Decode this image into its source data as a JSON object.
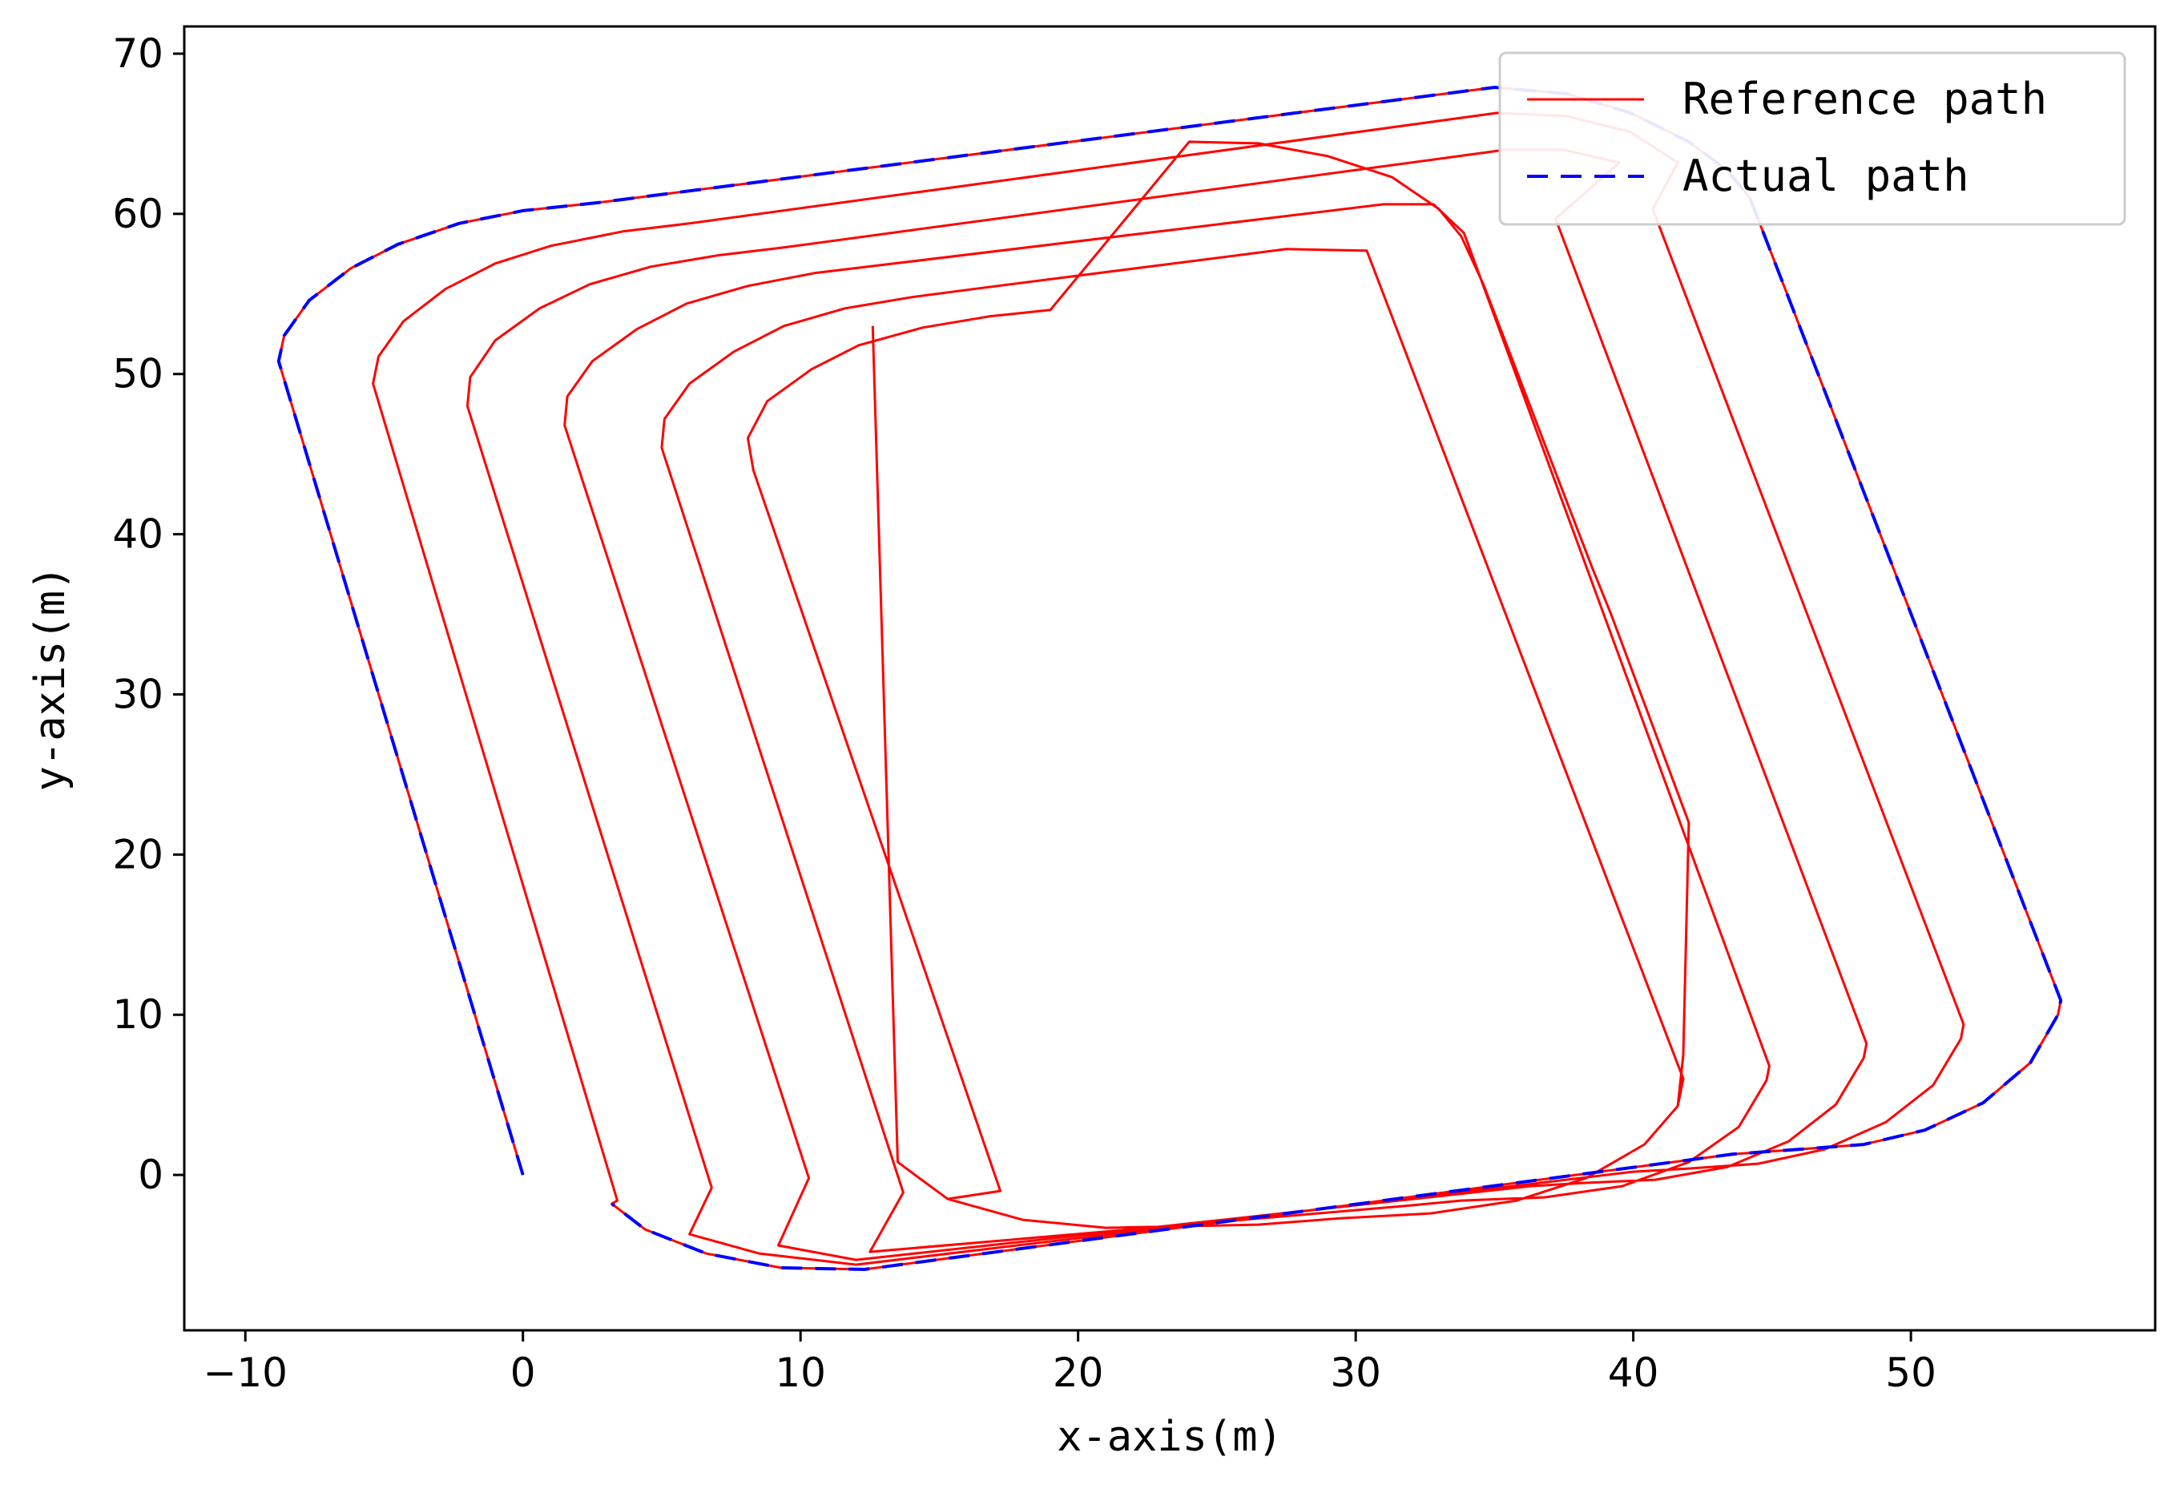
{
  "chart_data": {
    "type": "line",
    "title": "",
    "xlabel": "x-axis(m)",
    "ylabel": "y-axis(m)",
    "xlim": [
      -12.2,
      58.8
    ],
    "ylim": [
      -9.7,
      71.7
    ],
    "xticks": [
      -10,
      0,
      10,
      20,
      30,
      40,
      50
    ],
    "yticks": [
      0,
      10,
      20,
      30,
      40,
      50,
      60,
      70
    ],
    "grid": false,
    "legend": {
      "position": "top-right"
    },
    "series": [
      {
        "name": "Reference path",
        "color": "#ff0000",
        "style": "solid",
        "points": [
          [
            0.0,
            0.0
          ],
          [
            -8.8,
            50.8
          ],
          [
            -8.6,
            52.4
          ],
          [
            -7.7,
            54.6
          ],
          [
            -6.2,
            56.6
          ],
          [
            -4.5,
            58.1
          ],
          [
            -2.3,
            59.4
          ],
          [
            0.0,
            60.2
          ],
          [
            2.7,
            60.7
          ],
          [
            35.0,
            67.9
          ],
          [
            37.6,
            67.5
          ],
          [
            39.9,
            66.3
          ],
          [
            42.0,
            64.5
          ],
          [
            43.4,
            62.7
          ],
          [
            44.2,
            61.0
          ],
          [
            55.4,
            10.9
          ],
          [
            55.3,
            10.0
          ],
          [
            54.3,
            7.0
          ],
          [
            52.6,
            4.5
          ],
          [
            50.5,
            2.8
          ],
          [
            48.3,
            1.9
          ],
          [
            46.0,
            1.6
          ],
          [
            43.6,
            1.3
          ],
          [
            12.3,
            -5.9
          ],
          [
            9.3,
            -5.8
          ],
          [
            6.6,
            -4.9
          ],
          [
            4.4,
            -3.4
          ],
          [
            3.2,
            -1.8
          ],
          [
            3.4,
            -1.6
          ],
          [
            -5.4,
            49.4
          ],
          [
            -5.2,
            51.1
          ],
          [
            -4.3,
            53.3
          ],
          [
            -2.8,
            55.3
          ],
          [
            -1.0,
            56.9
          ],
          [
            1.0,
            58.0
          ],
          [
            3.6,
            58.9
          ],
          [
            6.0,
            59.4
          ],
          [
            35.1,
            66.3
          ],
          [
            37.6,
            66.1
          ],
          [
            39.9,
            65.1
          ],
          [
            41.6,
            63.2
          ],
          [
            40.7,
            60.3
          ],
          [
            51.9,
            9.4
          ],
          [
            51.8,
            8.5
          ],
          [
            50.8,
            5.6
          ],
          [
            49.1,
            3.3
          ],
          [
            46.9,
            1.6
          ],
          [
            44.5,
            0.7
          ],
          [
            42.0,
            0.4
          ],
          [
            40.0,
            0.2
          ],
          [
            12.0,
            -5.6
          ],
          [
            8.5,
            -4.9
          ],
          [
            6.0,
            -3.7
          ],
          [
            6.8,
            -0.8
          ],
          [
            -2.0,
            48.0
          ],
          [
            -1.9,
            49.8
          ],
          [
            -1.0,
            52.1
          ],
          [
            0.6,
            54.1
          ],
          [
            2.4,
            55.6
          ],
          [
            4.6,
            56.7
          ],
          [
            7.0,
            57.4
          ],
          [
            9.4,
            57.9
          ],
          [
            35.4,
            64.0
          ],
          [
            37.5,
            64.0
          ],
          [
            39.5,
            63.2
          ],
          [
            37.2,
            59.7
          ],
          [
            48.4,
            8.2
          ],
          [
            48.3,
            7.3
          ],
          [
            47.3,
            4.4
          ],
          [
            45.6,
            2.1
          ],
          [
            43.4,
            0.5
          ],
          [
            40.8,
            -0.3
          ],
          [
            38.2,
            -0.5
          ],
          [
            36.3,
            -0.7
          ],
          [
            12.0,
            -5.3
          ],
          [
            9.2,
            -4.4
          ],
          [
            10.3,
            -0.2
          ],
          [
            1.5,
            46.8
          ],
          [
            1.6,
            48.6
          ],
          [
            2.5,
            50.8
          ],
          [
            4.1,
            52.8
          ],
          [
            5.9,
            54.4
          ],
          [
            8.1,
            55.5
          ],
          [
            10.5,
            56.3
          ],
          [
            12.9,
            56.8
          ],
          [
            31.0,
            60.6
          ],
          [
            32.8,
            60.6
          ],
          [
            33.9,
            58.8
          ],
          [
            44.9,
            6.8
          ],
          [
            44.8,
            5.9
          ],
          [
            43.8,
            3.0
          ],
          [
            42.0,
            0.8
          ],
          [
            39.6,
            -0.7
          ],
          [
            36.8,
            -1.4
          ],
          [
            33.8,
            -1.6
          ],
          [
            32.0,
            -1.9
          ],
          [
            12.5,
            -4.8
          ],
          [
            13.7,
            -1.1
          ],
          [
            5.0,
            45.4
          ],
          [
            5.1,
            47.2
          ],
          [
            6.0,
            49.4
          ],
          [
            7.6,
            51.4
          ],
          [
            9.4,
            53.0
          ],
          [
            11.6,
            54.1
          ],
          [
            14.0,
            54.8
          ],
          [
            16.2,
            55.3
          ],
          [
            27.5,
            57.8
          ],
          [
            30.4,
            57.7
          ],
          [
            41.8,
            6.0
          ],
          [
            41.6,
            4.3
          ],
          [
            40.4,
            1.9
          ],
          [
            38.3,
            -0.2
          ],
          [
            35.8,
            -1.6
          ],
          [
            32.7,
            -2.4
          ],
          [
            29.5,
            -2.7
          ],
          [
            26.5,
            -3.1
          ],
          [
            21.0,
            -3.3
          ],
          [
            18.0,
            -2.8
          ],
          [
            15.3,
            -1.5
          ],
          [
            17.2,
            -1.0
          ],
          [
            8.3,
            44.0
          ],
          [
            8.1,
            46.0
          ],
          [
            8.8,
            48.3
          ],
          [
            10.4,
            50.3
          ],
          [
            12.1,
            51.8
          ],
          [
            14.4,
            52.9
          ],
          [
            16.8,
            53.6
          ],
          [
            19.0,
            54.0
          ],
          [
            24.0,
            64.5
          ],
          [
            26.5,
            64.4
          ],
          [
            29.0,
            63.6
          ],
          [
            31.3,
            62.3
          ],
          [
            33.0,
            60.3
          ],
          [
            33.8,
            58.6
          ],
          [
            34.6,
            55.6
          ],
          [
            38.5,
            38.0
          ],
          [
            39.2,
            35.0
          ],
          [
            42.0,
            22.0
          ],
          [
            41.8,
            7.5
          ],
          [
            41.6,
            4.3
          ],
          [
            40.4,
            1.9
          ],
          [
            38.3,
            -0.2
          ],
          [
            35.8,
            -1.6
          ],
          [
            32.7,
            -2.4
          ],
          [
            29.5,
            -2.7
          ],
          [
            26.5,
            -3.1
          ],
          [
            21.0,
            -3.3
          ],
          [
            18.0,
            -2.8
          ],
          [
            15.3,
            -1.5
          ],
          [
            13.5,
            0.8
          ],
          [
            12.6,
            53.0
          ]
        ]
      },
      {
        "name": "Actual path",
        "color": "#0000ff",
        "style": "dashed",
        "points": [
          [
            0.0,
            0.0
          ],
          [
            -8.8,
            50.8
          ],
          [
            -8.6,
            52.4
          ],
          [
            -7.7,
            54.6
          ],
          [
            -6.2,
            56.6
          ],
          [
            -4.5,
            58.1
          ],
          [
            -2.3,
            59.4
          ],
          [
            0.0,
            60.2
          ],
          [
            2.7,
            60.7
          ],
          [
            35.0,
            67.9
          ],
          [
            37.6,
            67.5
          ],
          [
            39.9,
            66.3
          ],
          [
            42.0,
            64.5
          ],
          [
            43.4,
            62.7
          ],
          [
            44.2,
            61.0
          ],
          [
            55.4,
            10.9
          ],
          [
            55.3,
            10.0
          ],
          [
            54.3,
            7.0
          ],
          [
            52.6,
            4.5
          ],
          [
            50.5,
            2.8
          ],
          [
            48.3,
            1.9
          ],
          [
            46.0,
            1.6
          ],
          [
            43.6,
            1.3
          ],
          [
            12.3,
            -5.9
          ],
          [
            9.3,
            -5.8
          ],
          [
            6.6,
            -4.9
          ],
          [
            4.4,
            -3.4
          ],
          [
            3.2,
            -1.8
          ]
        ]
      }
    ]
  }
}
